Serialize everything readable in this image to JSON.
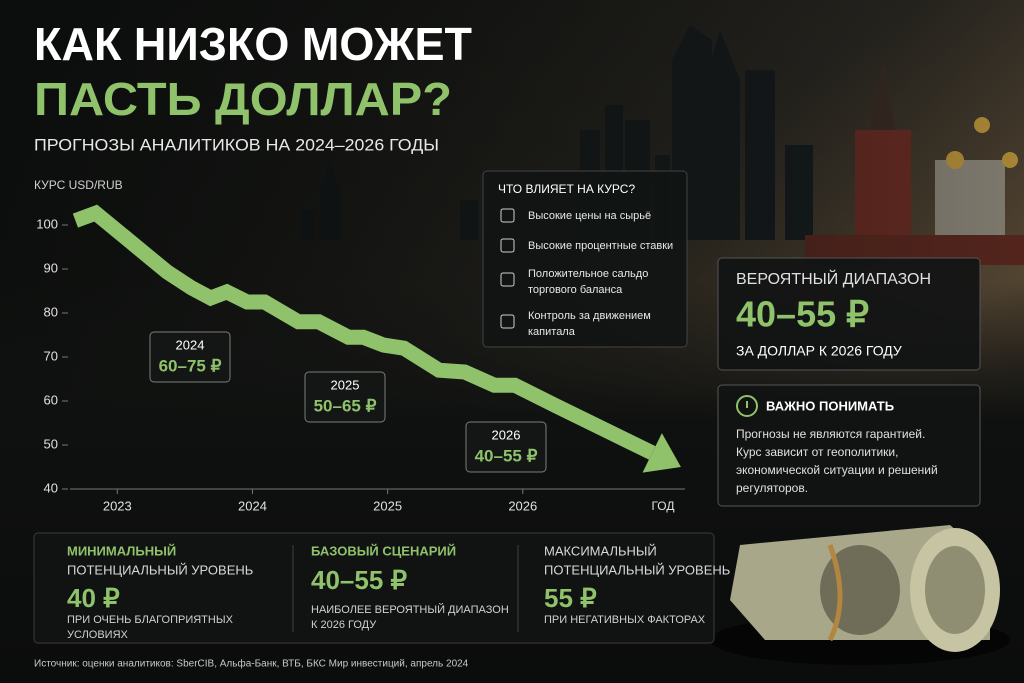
{
  "header": {
    "title_line1": "КАК НИЗКО МОЖЕТ",
    "title_line2": "ПАСТЬ ДОЛЛАР?",
    "subtitle": "ПРОГНОЗЫ АНАЛИТИКОВ НА 2024–2026 ГОДЫ"
  },
  "chart_data": {
    "type": "line",
    "y_label": "КУРС USD/RUB",
    "x_label": "ГОД",
    "color": "#8fc26a",
    "x": [
      2022.69,
      2022.84,
      2023.37,
      2023.55,
      2023.69,
      2023.81,
      2023.96,
      2024.09,
      2024.34,
      2024.49,
      2024.71,
      2024.82,
      2024.97,
      2025.12,
      2025.38,
      2025.57,
      2025.79,
      2025.94,
      2026.24,
      2027.17
    ],
    "values": [
      101,
      102.7,
      89.3,
      85.7,
      83.4,
      84.8,
      82.5,
      82.5,
      78,
      78,
      74.5,
      74.5,
      72.7,
      72,
      67,
      66.6,
      63.6,
      63.6,
      59,
      45
    ],
    "xlim": [
      2022.65,
      2027.2
    ],
    "ylim": [
      40,
      105
    ],
    "yticks": [
      40,
      50,
      60,
      70,
      80,
      90,
      100
    ],
    "xticks": [
      2023,
      2024,
      2025,
      2026
    ],
    "annotations": [
      {
        "year": "2024",
        "range": "60–75 ₽"
      },
      {
        "year": "2025",
        "range": "50–65 ₽"
      },
      {
        "year": "2026",
        "range": "40–55 ₽"
      }
    ]
  },
  "factors": {
    "title": "ЧТО ВЛИЯЕТ НА КУРС?",
    "items": [
      [
        "Высокие цены на сырьё"
      ],
      [
        "Высокие процентные ставки"
      ],
      [
        "Положительное сальдо",
        "торгового баланса"
      ],
      [
        "Контроль за движением",
        "капитала"
      ]
    ]
  },
  "probable": {
    "title": "ВЕРОЯТНЫЙ ДИАПАЗОН",
    "value": "40–55 ₽",
    "caption": "ЗА ДОЛЛАР К 2026 ГОДУ"
  },
  "important": {
    "title": "ВАЖНО ПОНИМАТЬ",
    "lines": [
      "Прогнозы не являются гарантией.",
      "Курс зависит от геополитики,",
      "экономической ситуации и решений",
      "регуляторов."
    ]
  },
  "scenarios": [
    {
      "title": [
        "МИНИМАЛЬНЫЙ",
        "ПОТЕНЦИАЛЬНЫЙ УРОВЕНЬ"
      ],
      "value": "40 ₽",
      "note": [
        "ПРИ ОЧЕНЬ БЛАГОПРИЯТНЫХ",
        "УСЛОВИЯХ"
      ]
    },
    {
      "title": [
        "БАЗОВЫЙ СЦЕНАРИЙ"
      ],
      "value": "40–55 ₽",
      "note": [
        "НАИБОЛЕЕ ВЕРОЯТНЫЙ ДИАПАЗОН",
        "К 2026 ГОДУ"
      ]
    },
    {
      "title": [
        "МАКСИМАЛЬНЫЙ",
        "ПОТЕНЦИАЛЬНЫЙ УРОВЕНЬ"
      ],
      "value": "55 ₽",
      "note": [
        "ПРИ НЕГАТИВНЫХ ФАКТОРАХ"
      ]
    }
  ],
  "source": "Источник: оценки аналитиков: SberCIB, Альфа-Банк, ВТБ, БКС Мир инвестиций, апрель 2024"
}
